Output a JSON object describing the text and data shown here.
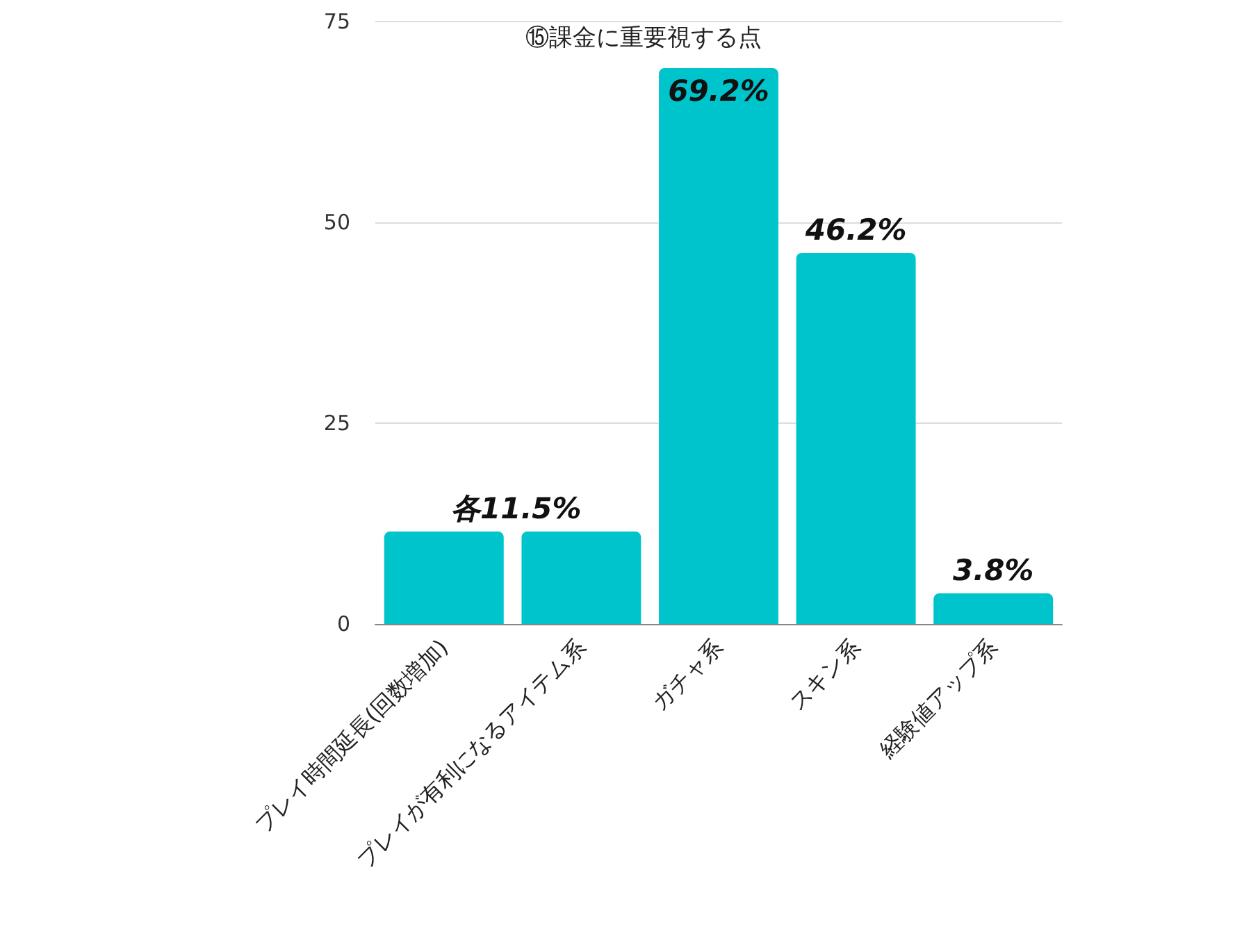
{
  "chart_data": {
    "type": "bar",
    "title": "⑮課金に重要視する点",
    "categories": [
      "プレイ時間延長(回数増加)",
      "プレイが有利になるアイテム系",
      "ガチャ系",
      "スキン系",
      "経験値アップ系"
    ],
    "values": [
      11.5,
      11.5,
      69.2,
      46.2,
      3.8
    ],
    "value_labels": [
      "各11.5%",
      null,
      "69.2%",
      "46.2%",
      "3.8%"
    ],
    "color": "#00c4cc",
    "ylim": [
      0,
      75
    ],
    "yticks": [
      0,
      25,
      50,
      75
    ],
    "grid": "y"
  }
}
